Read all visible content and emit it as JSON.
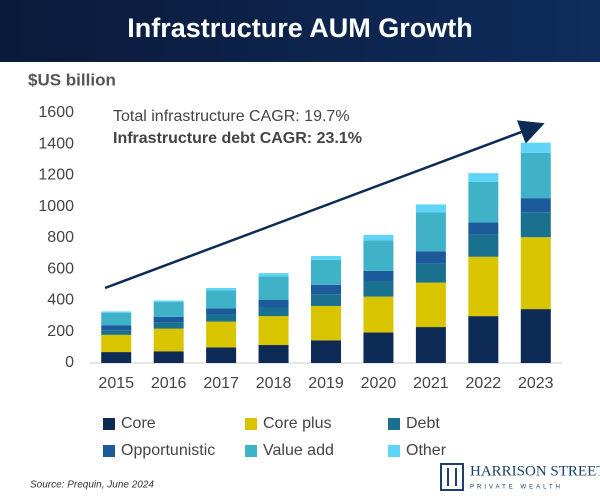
{
  "chart_data": {
    "type": "stacked-bar",
    "title": "Infrastructure AUM Growth",
    "y_axis_label": "$US billion",
    "annotations": [
      "Total infrastructure CAGR: 19.7%",
      "Infrastructure debt CAGR: 23.1%"
    ],
    "categories": [
      "2015",
      "2016",
      "2017",
      "2018",
      "2019",
      "2020",
      "2021",
      "2022",
      "2023"
    ],
    "series": [
      {
        "name": "Core",
        "color": "#0d2b55",
        "values": [
          70,
          75,
          100,
          115,
          145,
          195,
          230,
          300,
          345
        ]
      },
      {
        "name": "Core plus",
        "color": "#d9c400",
        "values": [
          110,
          145,
          165,
          185,
          220,
          230,
          285,
          380,
          460
        ]
      },
      {
        "name": "Debt",
        "color": "#19708f",
        "values": [
          30,
          40,
          45,
          55,
          75,
          100,
          120,
          140,
          160
        ]
      },
      {
        "name": "Opportunistic",
        "color": "#1c5a9c",
        "values": [
          30,
          35,
          40,
          50,
          60,
          65,
          80,
          80,
          90
        ]
      },
      {
        "name": "Value add",
        "color": "#3fb2c7",
        "values": [
          80,
          95,
          115,
          150,
          160,
          195,
          250,
          260,
          290
        ]
      },
      {
        "name": "Other",
        "color": "#5fd4f6",
        "values": [
          10,
          10,
          15,
          20,
          25,
          35,
          50,
          55,
          65
        ]
      }
    ],
    "ylim": [
      0,
      1600
    ],
    "yticks": [
      0,
      200,
      400,
      600,
      800,
      1000,
      1200,
      1400,
      1600
    ],
    "grid": false
  },
  "footer": {
    "source": "Source: Prequin, June 2024",
    "logo_name": "HARRISON STREET",
    "logo_sub": "PRIVATE WEALTH"
  }
}
